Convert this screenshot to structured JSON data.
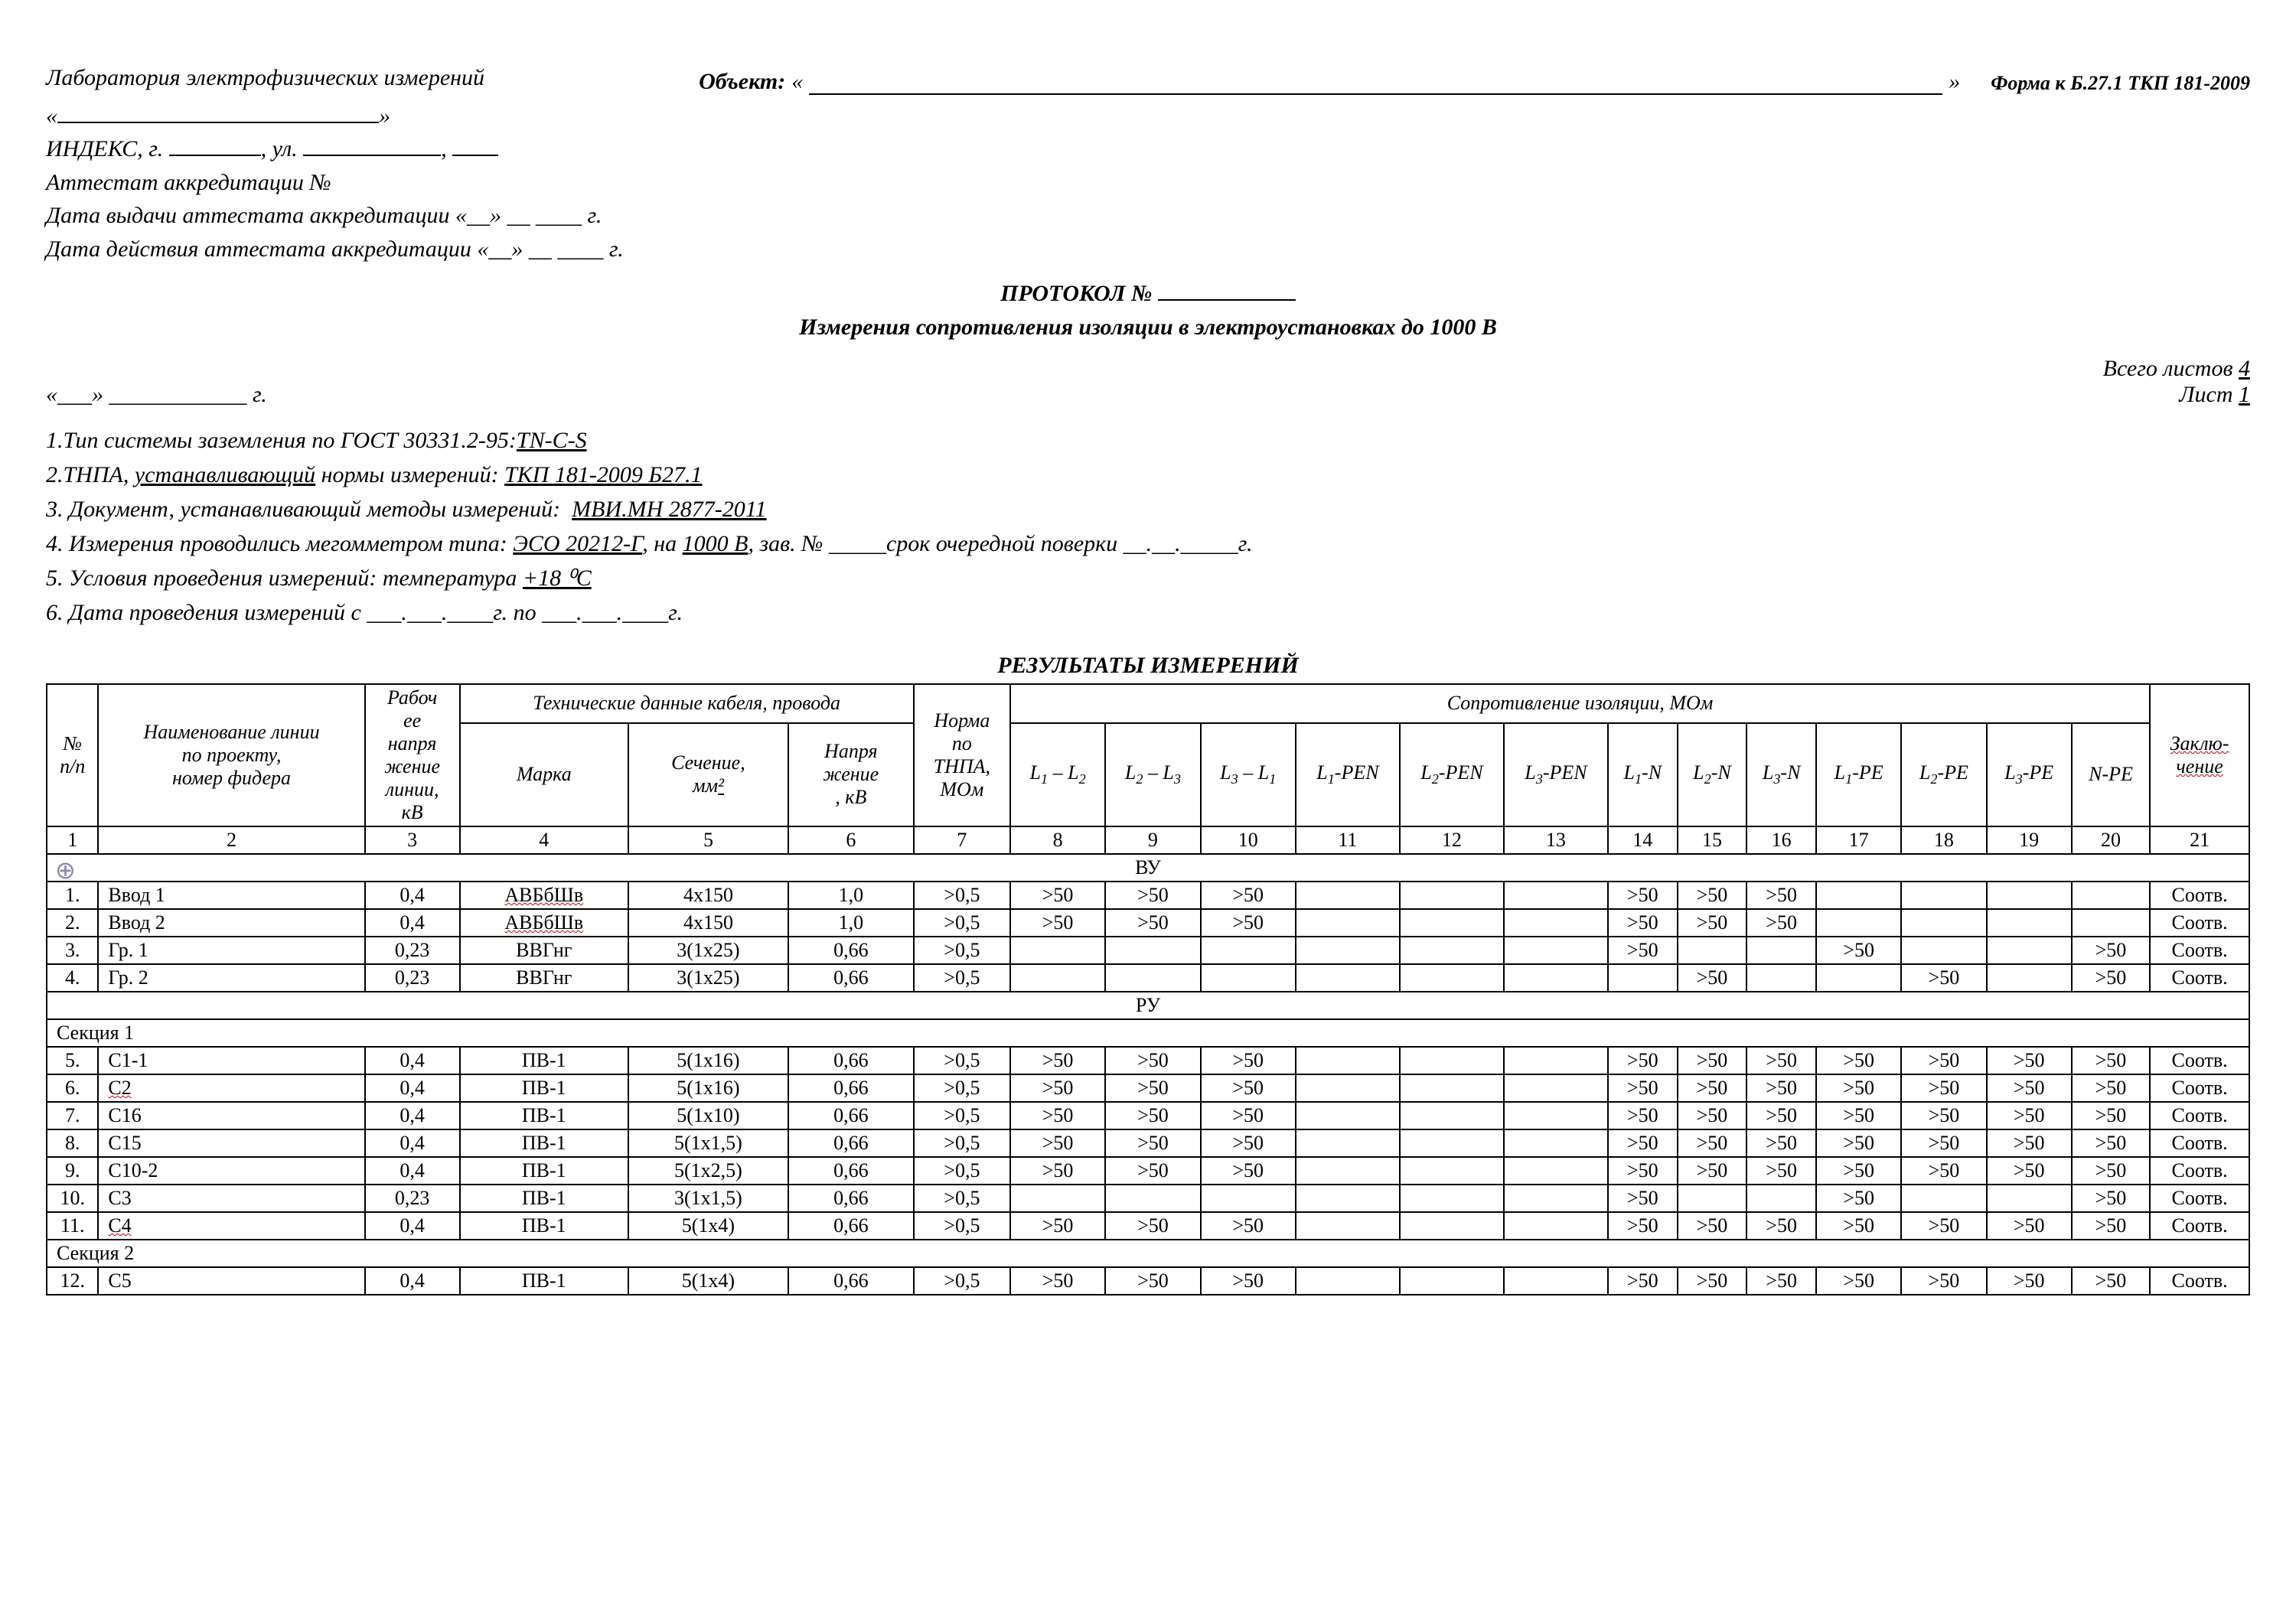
{
  "page": {
    "form_id": "Форма к Б.27.1 ТКП 181-2009",
    "lab_name_label": "Лаборатория электрофизических измерений",
    "object_label": "Объект:",
    "index_label": "ИНДЕКС, г.",
    "street_label": ", ул.",
    "accred_label": "Аттестат аккредитации №",
    "accred_issue_label": "Дата выдачи аттестата аккредитации «__» __ ____ г.",
    "accred_valid_label": "Дата действия аттестата аккредитации «__» __ ____ г.",
    "protocol_label": "ПРОТОКОЛ №",
    "subtitle": "Измерения сопротивления изоляции в электроустановках до 1000 В",
    "date_line": "«___» ____________ г.",
    "sheets_total_label": "Всего листов",
    "sheets_total": "4",
    "sheet_label": "Лист",
    "sheet_num": "1",
    "p1_prefix": "1.Тип системы заземления по ГОСТ 30331.2-95:",
    "p1_value": "TN-C-S",
    "p2_prefix": "2.ТНПА,",
    "p2_mid": "устанавливающий",
    "p2_suffix": "нормы измерений:",
    "p2_value": "ТКП 181-2009 Б27.1",
    "p3_prefix": "3. Документ, устанавливающий методы измерений:",
    "p3_value": "МВИ.МН 2877-2011",
    "p4_prefix": "4. Измерения проводились мегомметром типа:",
    "p4_device": "ЭСО 20212-Г",
    "p4_on": ", на",
    "p4_volt": "1000 В",
    "p4_serial": ", зав. № _____срок очередной поверки __.__._____г.",
    "p5_prefix": "5. Условия проведения измерений: температура",
    "p5_value": "+18 ⁰С",
    "p6": "6. Дата проведения измерений с ___.___.____г. по ___.___.____г.",
    "results_title": "РЕЗУЛЬТАТЫ ИЗМЕРЕНИЙ"
  },
  "table": {
    "headers": {
      "npp": "№ п/п",
      "name": "Наименование линии по проекту, номер фидера",
      "voltage": "Рабочее напряжение линии, кВ",
      "cable_group": "Технические данные кабеля, провода",
      "mark": "Марка",
      "section": "Сечение, мм²",
      "volt2": "Напряжение, кВ",
      "norm": "Норма по ТНПА, МОм",
      "resist_group": "Сопротивление изоляции, МОм",
      "cols_resist": [
        "L₁ – L₂",
        "L₂ – L₃",
        "L₃ – L₁",
        "L₁-PEN",
        "L₂-PEN",
        "L₃-PEN",
        "L₁-N",
        "L₂-N",
        "L₃-N",
        "L₁-PE",
        "L₂-PE",
        "L₃-PE",
        "N-PE"
      ],
      "concl": "Заключение",
      "numrow": [
        "1",
        "2",
        "3",
        "4",
        "5",
        "6",
        "7",
        "8",
        "9",
        "10",
        "11",
        "12",
        "13",
        "14",
        "15",
        "16",
        "17",
        "18",
        "19",
        "20",
        "21"
      ]
    },
    "sections": [
      {
        "type": "group",
        "label": "ВУ"
      },
      {
        "type": "row",
        "n": "1.",
        "name": "Ввод 1",
        "v": "0,4",
        "mark": "АВБбШв",
        "mark_red": true,
        "sec": "4х150",
        "vv": "1,0",
        "norm": ">0,5",
        "r": [
          ">50",
          ">50",
          ">50",
          "",
          "",
          "",
          ">50",
          ">50",
          ">50",
          "",
          "",
          "",
          ""
        ],
        "concl": "Соотв."
      },
      {
        "type": "row",
        "n": "2.",
        "name": "Ввод 2",
        "v": "0,4",
        "mark": "АВБбШв",
        "mark_red": true,
        "sec": "4х150",
        "vv": "1,0",
        "norm": ">0,5",
        "r": [
          ">50",
          ">50",
          ">50",
          "",
          "",
          "",
          ">50",
          ">50",
          ">50",
          "",
          "",
          "",
          ""
        ],
        "concl": "Соотв."
      },
      {
        "type": "row",
        "n": "3.",
        "name": "Гр. 1",
        "v": "0,23",
        "mark": "ВВГнг",
        "sec": "3(1х25)",
        "vv": "0,66",
        "norm": ">0,5",
        "r": [
          "",
          "",
          "",
          "",
          "",
          "",
          ">50",
          "",
          "",
          ">50",
          "",
          "",
          ">50"
        ],
        "concl": "Соотв."
      },
      {
        "type": "row",
        "n": "4.",
        "name": "Гр. 2",
        "v": "0,23",
        "mark": "ВВГнг",
        "sec": "3(1х25)",
        "vv": "0,66",
        "norm": ">0,5",
        "r": [
          "",
          "",
          "",
          "",
          "",
          "",
          "",
          ">50",
          "",
          "",
          ">50",
          "",
          ">50"
        ],
        "concl": "Соотв."
      },
      {
        "type": "group",
        "label": "РУ"
      },
      {
        "type": "section",
        "label": "Секция 1"
      },
      {
        "type": "row",
        "n": "5.",
        "name": "С1-1",
        "v": "0,4",
        "mark": "ПВ-1",
        "sec": "5(1х16)",
        "vv": "0,66",
        "norm": ">0,5",
        "r": [
          ">50",
          ">50",
          ">50",
          "",
          "",
          "",
          ">50",
          ">50",
          ">50",
          ">50",
          ">50",
          ">50",
          ">50"
        ],
        "concl": "Соотв."
      },
      {
        "type": "row",
        "n": "6.",
        "name": "С2",
        "name_red": true,
        "v": "0,4",
        "mark": "ПВ-1",
        "sec": "5(1х16)",
        "vv": "0,66",
        "norm": ">0,5",
        "r": [
          ">50",
          ">50",
          ">50",
          "",
          "",
          "",
          ">50",
          ">50",
          ">50",
          ">50",
          ">50",
          ">50",
          ">50"
        ],
        "concl": "Соотв."
      },
      {
        "type": "row",
        "n": "7.",
        "name": "С16",
        "v": "0,4",
        "mark": "ПВ-1",
        "sec": "5(1х10)",
        "vv": "0,66",
        "norm": ">0,5",
        "r": [
          ">50",
          ">50",
          ">50",
          "",
          "",
          "",
          ">50",
          ">50",
          ">50",
          ">50",
          ">50",
          ">50",
          ">50"
        ],
        "concl": "Соотв."
      },
      {
        "type": "row",
        "n": "8.",
        "name": "С15",
        "v": "0,4",
        "mark": "ПВ-1",
        "sec": "5(1х1,5)",
        "vv": "0,66",
        "norm": ">0,5",
        "r": [
          ">50",
          ">50",
          ">50",
          "",
          "",
          "",
          ">50",
          ">50",
          ">50",
          ">50",
          ">50",
          ">50",
          ">50"
        ],
        "concl": "Соотв."
      },
      {
        "type": "row",
        "n": "9.",
        "name": "С10-2",
        "v": "0,4",
        "mark": "ПВ-1",
        "sec": "5(1х2,5)",
        "vv": "0,66",
        "norm": ">0,5",
        "r": [
          ">50",
          ">50",
          ">50",
          "",
          "",
          "",
          ">50",
          ">50",
          ">50",
          ">50",
          ">50",
          ">50",
          ">50"
        ],
        "concl": "Соотв."
      },
      {
        "type": "row",
        "n": "10.",
        "name": "С3",
        "v": "0,23",
        "mark": "ПВ-1",
        "sec": "3(1х1,5)",
        "vv": "0,66",
        "norm": ">0,5",
        "r": [
          "",
          "",
          "",
          "",
          "",
          "",
          ">50",
          "",
          "",
          ">50",
          "",
          "",
          ">50"
        ],
        "concl": "Соотв."
      },
      {
        "type": "row",
        "n": "11.",
        "name": "С4",
        "name_red": true,
        "v": "0,4",
        "mark": "ПВ-1",
        "sec": "5(1х4)",
        "vv": "0,66",
        "norm": ">0,5",
        "r": [
          ">50",
          ">50",
          ">50",
          "",
          "",
          "",
          ">50",
          ">50",
          ">50",
          ">50",
          ">50",
          ">50",
          ">50"
        ],
        "concl": "Соотв."
      },
      {
        "type": "section",
        "label": "Секция 2"
      },
      {
        "type": "row",
        "n": "12.",
        "name": "С5",
        "v": "0,4",
        "mark": "ПВ-1",
        "sec": "5(1х4)",
        "vv": "0,66",
        "norm": ">0,5",
        "r": [
          ">50",
          ">50",
          ">50",
          "",
          "",
          "",
          ">50",
          ">50",
          ">50",
          ">50",
          ">50",
          ">50",
          ">50"
        ],
        "concl": "Соотв."
      }
    ]
  }
}
